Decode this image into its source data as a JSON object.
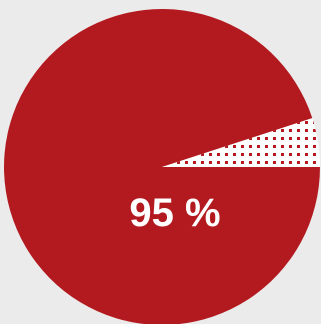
{
  "chart_data": {
    "type": "pie",
    "values": [
      95,
      5
    ],
    "center_label": "95 %",
    "colors": {
      "primary": "#b31a1f",
      "secondary_background": "#ffffff",
      "secondary_pattern": "#b31a1f",
      "page_background": "#ebebeb"
    },
    "secondary_style": "dotted-pattern"
  }
}
